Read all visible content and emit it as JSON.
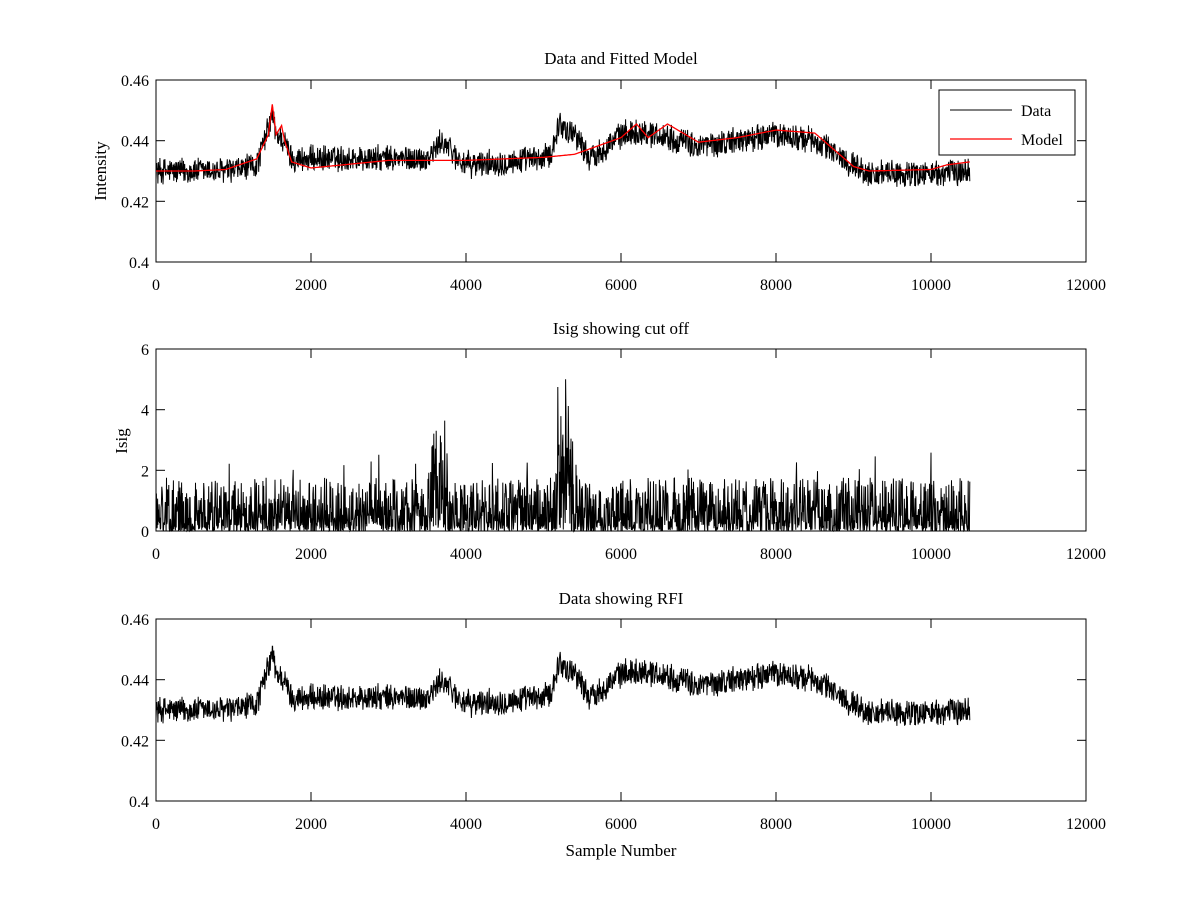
{
  "chart_data": [
    {
      "type": "line",
      "title": "Data and Fitted Model",
      "xlabel": "",
      "ylabel": "Intensity",
      "xlim": [
        0,
        12000
      ],
      "ylim": [
        0.4,
        0.46
      ],
      "xticks": [
        "0",
        "2000",
        "4000",
        "6000",
        "8000",
        "10000",
        "12000"
      ],
      "yticks": [
        "0.4",
        "0.42",
        "0.44",
        "0.46"
      ],
      "legend": {
        "position": "top-right",
        "entries": [
          "Data",
          "Model"
        ]
      },
      "series": [
        {
          "name": "Data",
          "color": "#000000",
          "x": [
            0,
            500,
            1000,
            1300,
            1450,
            1500,
            1550,
            1650,
            1750,
            2000,
            3000,
            3500,
            3700,
            3900,
            4000,
            5000,
            5100,
            5200,
            5300,
            5400,
            5600,
            6000,
            6200,
            6500,
            7000,
            8000,
            8500,
            9000,
            9200,
            10000,
            10500
          ],
          "values": [
            0.43,
            0.43,
            0.43,
            0.432,
            0.444,
            0.449,
            0.442,
            0.44,
            0.434,
            0.434,
            0.434,
            0.434,
            0.44,
            0.434,
            0.432,
            0.434,
            0.436,
            0.446,
            0.443,
            0.443,
            0.434,
            0.442,
            0.443,
            0.442,
            0.438,
            0.442,
            0.44,
            0.432,
            0.429,
            0.429,
            0.43
          ],
          "noise_amplitude": 0.005,
          "range": [
            0.418,
            0.458
          ]
        },
        {
          "name": "Model",
          "color": "#ff0000",
          "x": [
            0,
            500,
            900,
            1300,
            1450,
            1500,
            1550,
            1620,
            1660,
            1750,
            2000,
            3000,
            4000,
            5000,
            5400,
            6000,
            6200,
            6350,
            6600,
            7000,
            7500,
            8000,
            8500,
            9000,
            9200,
            10000,
            10200,
            10500
          ],
          "values": [
            0.43,
            0.43,
            0.4305,
            0.434,
            0.442,
            0.452,
            0.442,
            0.445,
            0.44,
            0.433,
            0.431,
            0.4335,
            0.4335,
            0.4345,
            0.4355,
            0.441,
            0.4455,
            0.441,
            0.4455,
            0.4395,
            0.441,
            0.4435,
            0.4425,
            0.4315,
            0.43,
            0.4305,
            0.432,
            0.433
          ]
        }
      ]
    },
    {
      "type": "line",
      "title": "Isig showing cut off",
      "xlabel": "",
      "ylabel": "Isig",
      "xlim": [
        0,
        12000
      ],
      "ylim": [
        0,
        6
      ],
      "xticks": [
        "0",
        "2000",
        "4000",
        "6000",
        "8000",
        "10000",
        "12000"
      ],
      "yticks": [
        "0",
        "2",
        "4",
        "6"
      ],
      "series": [
        {
          "color": "#000000",
          "x": [
            0,
            3500,
            3600,
            3700,
            3800,
            5150,
            5200,
            5300,
            5400,
            5450,
            10500
          ],
          "values": [
            0.8,
            0.8,
            1.6,
            2.2,
            0.8,
            0.8,
            2.8,
            2.6,
            1.4,
            0.8,
            0.8
          ],
          "noise_amplitude": 1.0,
          "range": [
            0,
            5
          ]
        }
      ]
    },
    {
      "type": "line",
      "title": "Data showing RFI",
      "xlabel": "Sample Number",
      "ylabel": "",
      "xlim": [
        0,
        12000
      ],
      "ylim": [
        0.4,
        0.46
      ],
      "xticks": [
        "0",
        "2000",
        "4000",
        "6000",
        "8000",
        "10000",
        "12000"
      ],
      "yticks": [
        "0.4",
        "0.42",
        "0.44",
        "0.46"
      ],
      "series": [
        {
          "color": "#000000",
          "x": [
            0,
            500,
            1000,
            1300,
            1450,
            1500,
            1550,
            1650,
            1750,
            2000,
            3000,
            3500,
            3700,
            3900,
            4000,
            5000,
            5100,
            5200,
            5300,
            5400,
            5600,
            6000,
            6200,
            6500,
            7000,
            8000,
            8500,
            9000,
            9200,
            10000,
            10500
          ],
          "values": [
            0.43,
            0.43,
            0.43,
            0.432,
            0.444,
            0.449,
            0.442,
            0.44,
            0.434,
            0.434,
            0.434,
            0.434,
            0.44,
            0.434,
            0.432,
            0.434,
            0.436,
            0.446,
            0.443,
            0.443,
            0.434,
            0.442,
            0.443,
            0.442,
            0.438,
            0.442,
            0.44,
            0.432,
            0.429,
            0.429,
            0.43
          ],
          "noise_amplitude": 0.005,
          "range": [
            0.418,
            0.458
          ]
        }
      ]
    }
  ]
}
